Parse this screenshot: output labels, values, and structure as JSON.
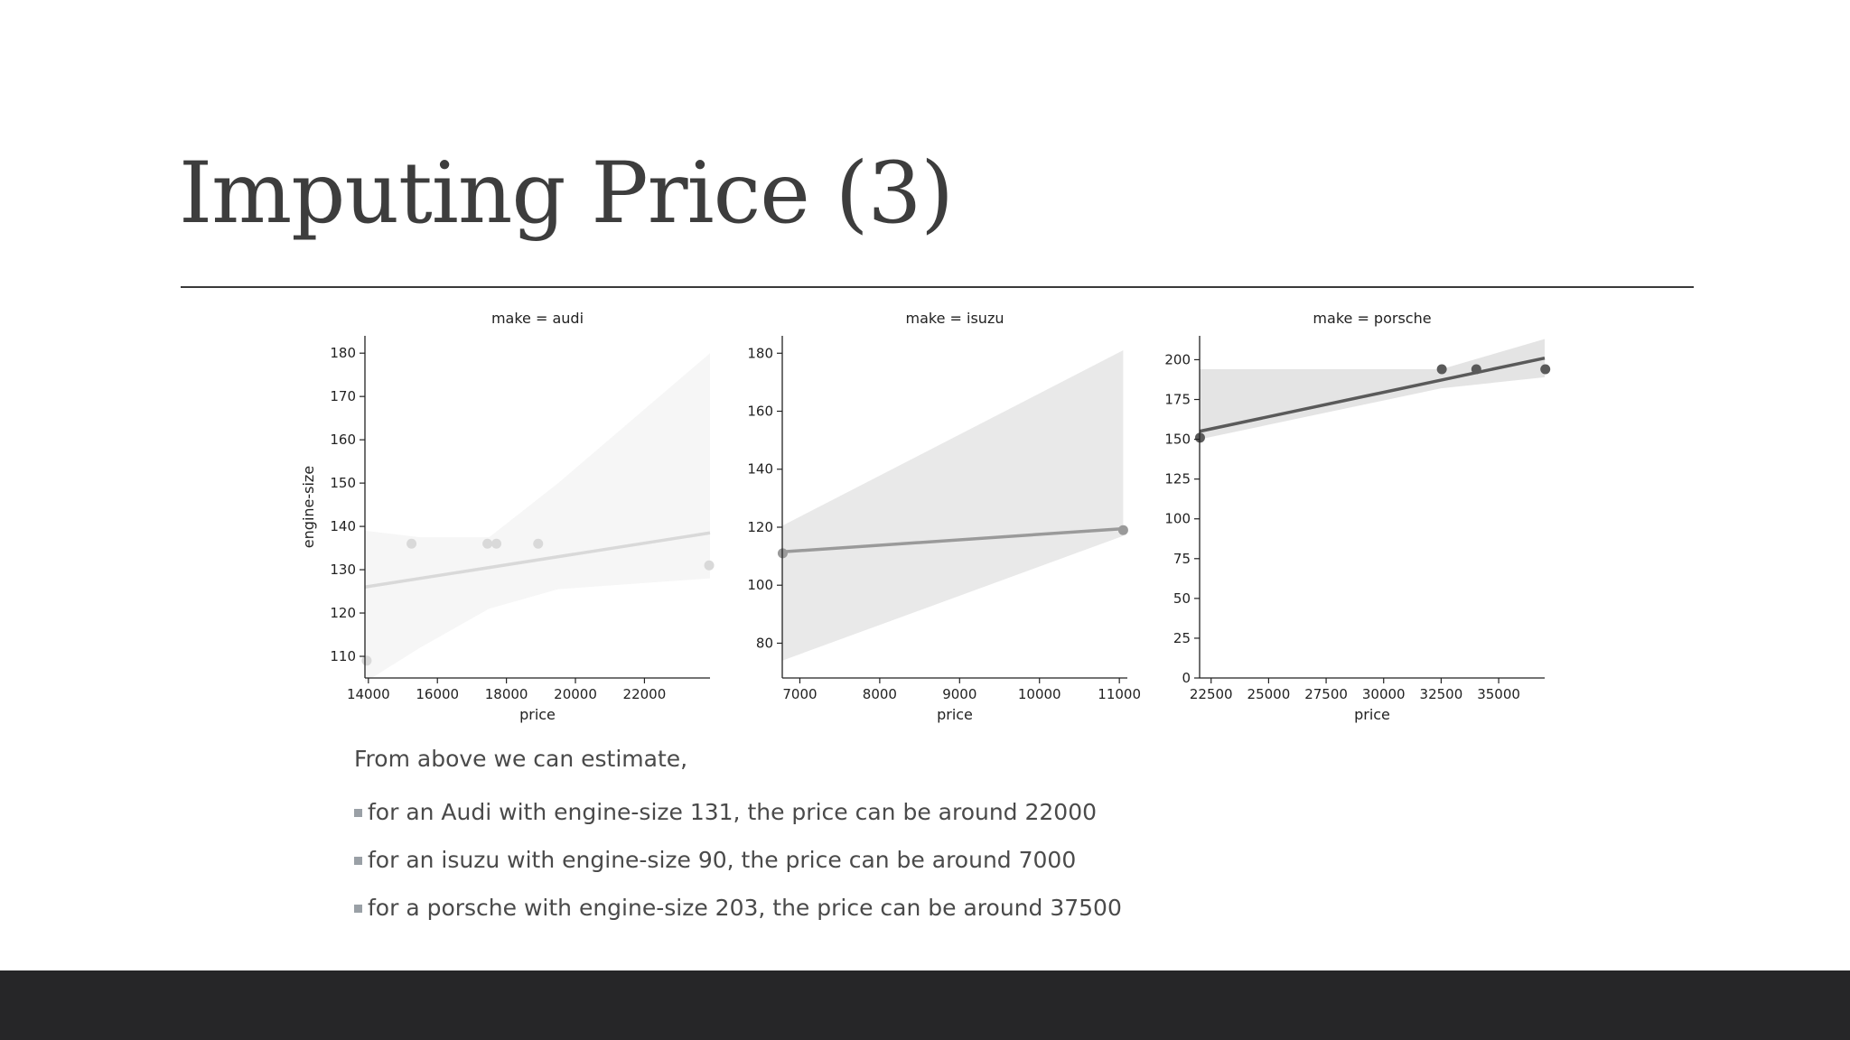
{
  "slide": {
    "title": "Imputing Price (3)",
    "intro": "From above we can estimate,",
    "bullets": [
      "for an Audi with engine-size 131, the price can be around 22000",
      "for an isuzu with engine-size 90, the price can be around 7000",
      "for a porsche with engine-size 203, the price can be around 37500"
    ]
  },
  "colors": {
    "title": "#3d3d3d",
    "rule": "#3a3a3a",
    "footer": "#262628",
    "bullet": "#9aa0a6",
    "audi": "#d9d9d9",
    "isuzu": "#9a9a9a",
    "porsche": "#5a5a5a"
  },
  "chart_data": [
    {
      "type": "scatter",
      "title": "make = audi",
      "xlabel": "price",
      "ylabel": "engine-size",
      "xlim": [
        13900,
        23900
      ],
      "ylim": [
        105,
        184
      ],
      "xticks": [
        14000,
        16000,
        18000,
        20000,
        22000
      ],
      "yticks": [
        110,
        120,
        130,
        140,
        150,
        160,
        170,
        180
      ],
      "points": [
        {
          "x": 13950,
          "y": 109
        },
        {
          "x": 15250,
          "y": 136
        },
        {
          "x": 17450,
          "y": 136
        },
        {
          "x": 17710,
          "y": 136
        },
        {
          "x": 18920,
          "y": 136
        },
        {
          "x": 23875,
          "y": 131
        }
      ],
      "fit": [
        {
          "x": 13900,
          "y": 126
        },
        {
          "x": 23900,
          "y": 138.5
        }
      ],
      "band": [
        [
          13900,
          139,
          104
        ],
        [
          15500,
          137.5,
          112
        ],
        [
          17500,
          137.5,
          121
        ],
        [
          19500,
          150,
          125.5
        ],
        [
          23900,
          180,
          128
        ]
      ],
      "grid": false,
      "legend": "none"
    },
    {
      "type": "scatter",
      "title": "make = isuzu",
      "xlabel": "price",
      "ylabel": "",
      "xlim": [
        6780,
        11100
      ],
      "ylim": [
        68,
        186
      ],
      "xticks": [
        7000,
        8000,
        9000,
        10000,
        11000
      ],
      "yticks": [
        80,
        100,
        120,
        140,
        160,
        180
      ],
      "points": [
        {
          "x": 6785,
          "y": 111
        },
        {
          "x": 11048,
          "y": 119
        }
      ],
      "fit": [
        {
          "x": 6780,
          "y": 111.5
        },
        {
          "x": 11048,
          "y": 119.5
        }
      ],
      "band": [
        [
          6780,
          120.5,
          74
        ],
        [
          11048,
          181,
          117
        ]
      ],
      "grid": false,
      "legend": "none"
    },
    {
      "type": "scatter",
      "title": "make = porsche",
      "xlabel": "price",
      "ylabel": "",
      "xlim": [
        22000,
        37000
      ],
      "ylim": [
        0,
        215
      ],
      "xticks": [
        22500,
        25000,
        27500,
        30000,
        32500,
        35000
      ],
      "yticks": [
        0,
        25,
        50,
        75,
        100,
        125,
        150,
        175,
        200
      ],
      "points": [
        {
          "x": 22018,
          "y": 151
        },
        {
          "x": 32528,
          "y": 194
        },
        {
          "x": 34028,
          "y": 194
        },
        {
          "x": 37028,
          "y": 194
        }
      ],
      "fit": [
        {
          "x": 22000,
          "y": 155
        },
        {
          "x": 37000,
          "y": 201
        }
      ],
      "band": [
        [
          22000,
          194,
          150
        ],
        [
          32500,
          194,
          182
        ],
        [
          37000,
          213,
          189
        ]
      ],
      "grid": false,
      "legend": "none"
    }
  ]
}
